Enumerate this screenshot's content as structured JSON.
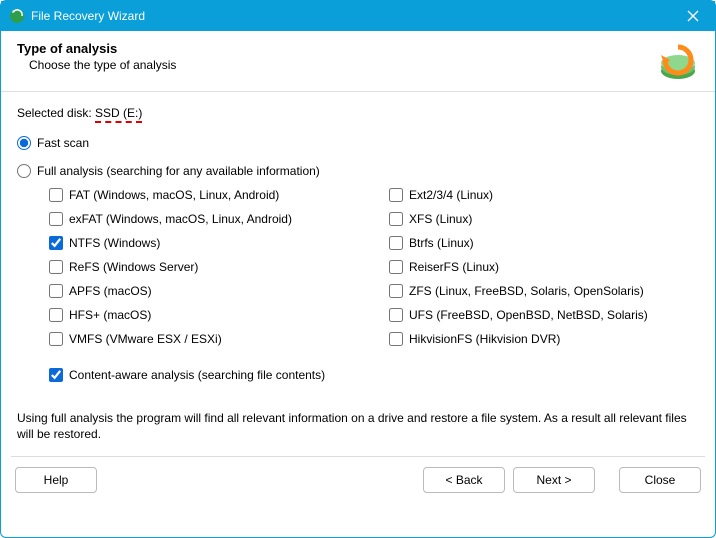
{
  "titlebar": {
    "title": "File Recovery Wizard"
  },
  "header": {
    "title": "Type of analysis",
    "subtitle": "Choose the type of analysis"
  },
  "disk": {
    "label": "Selected disk: ",
    "value": "SSD (E:)"
  },
  "scan": {
    "fast_label": "Fast scan",
    "fast_selected": true,
    "full_label": "Full analysis (searching for any available information)",
    "full_selected": false
  },
  "filesystems": {
    "left": [
      {
        "key": "fat",
        "label": "FAT (Windows, macOS, Linux, Android)",
        "checked": false
      },
      {
        "key": "exfat",
        "label": "exFAT (Windows, macOS, Linux, Android)",
        "checked": false
      },
      {
        "key": "ntfs",
        "label": "NTFS (Windows)",
        "checked": true
      },
      {
        "key": "refs",
        "label": "ReFS (Windows Server)",
        "checked": false
      },
      {
        "key": "apfs",
        "label": "APFS (macOS)",
        "checked": false
      },
      {
        "key": "hfs",
        "label": "HFS+ (macOS)",
        "checked": false
      },
      {
        "key": "vmfs",
        "label": "VMFS (VMware ESX / ESXi)",
        "checked": false
      }
    ],
    "right": [
      {
        "key": "ext",
        "label": "Ext2/3/4 (Linux)",
        "checked": false
      },
      {
        "key": "xfs",
        "label": "XFS (Linux)",
        "checked": false
      },
      {
        "key": "btrfs",
        "label": "Btrfs (Linux)",
        "checked": false
      },
      {
        "key": "reiser",
        "label": "ReiserFS (Linux)",
        "checked": false
      },
      {
        "key": "zfs",
        "label": "ZFS (Linux, FreeBSD, Solaris, OpenSolaris)",
        "checked": false
      },
      {
        "key": "ufs",
        "label": "UFS (FreeBSD, OpenBSD, NetBSD, Solaris)",
        "checked": false
      },
      {
        "key": "hik",
        "label": "HikvisionFS (Hikvision DVR)",
        "checked": false
      }
    ]
  },
  "content_aware": {
    "label": "Content-aware analysis (searching file contents)",
    "checked": true
  },
  "note": "Using full analysis the program will find all relevant information on a drive and restore a file system. As a result all relevant files will be restored.",
  "buttons": {
    "help": "Help",
    "back": "< Back",
    "next": "Next >",
    "close": "Close"
  },
  "colors": {
    "accent": "#0a9fd8",
    "check_accent": "#0a6bd8",
    "underline": "#d00"
  }
}
